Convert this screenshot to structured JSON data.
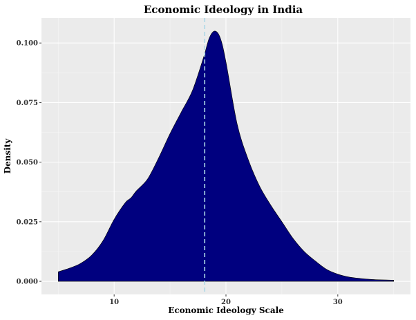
{
  "chart_data": {
    "type": "area",
    "title": "Economic Ideology in India",
    "xlabel": "Economic Ideology Scale",
    "ylabel": "Density",
    "xlim": [
      3.5,
      36.5
    ],
    "ylim": [
      -0.0055,
      0.1105
    ],
    "x_ticks": [
      10,
      20,
      30
    ],
    "y_ticks": [
      0.0,
      0.025,
      0.05,
      0.075,
      0.1
    ],
    "x_tick_labels": [
      "10",
      "20",
      "30"
    ],
    "y_tick_labels": [
      "0.000",
      "0.025",
      "0.050",
      "0.075",
      "0.100"
    ],
    "grid": true,
    "fill_color": "#00007f",
    "vline": {
      "x": 18.1,
      "color": "#add8e6",
      "style": "dashed"
    },
    "density": {
      "x": [
        5,
        6,
        7,
        8,
        9,
        10,
        11,
        11.5,
        12,
        13,
        14,
        15,
        16,
        17,
        18,
        18.5,
        19,
        19.5,
        20,
        21,
        22,
        23,
        24,
        25,
        26,
        27,
        28,
        29,
        30,
        31,
        32,
        33,
        34,
        35
      ],
      "y": [
        0.004,
        0.0055,
        0.0075,
        0.011,
        0.017,
        0.026,
        0.033,
        0.035,
        0.038,
        0.043,
        0.052,
        0.062,
        0.071,
        0.08,
        0.094,
        0.102,
        0.105,
        0.102,
        0.092,
        0.066,
        0.051,
        0.04,
        0.032,
        0.025,
        0.018,
        0.0125,
        0.0085,
        0.005,
        0.003,
        0.0018,
        0.0012,
        0.0008,
        0.0006,
        0.0005
      ]
    }
  }
}
